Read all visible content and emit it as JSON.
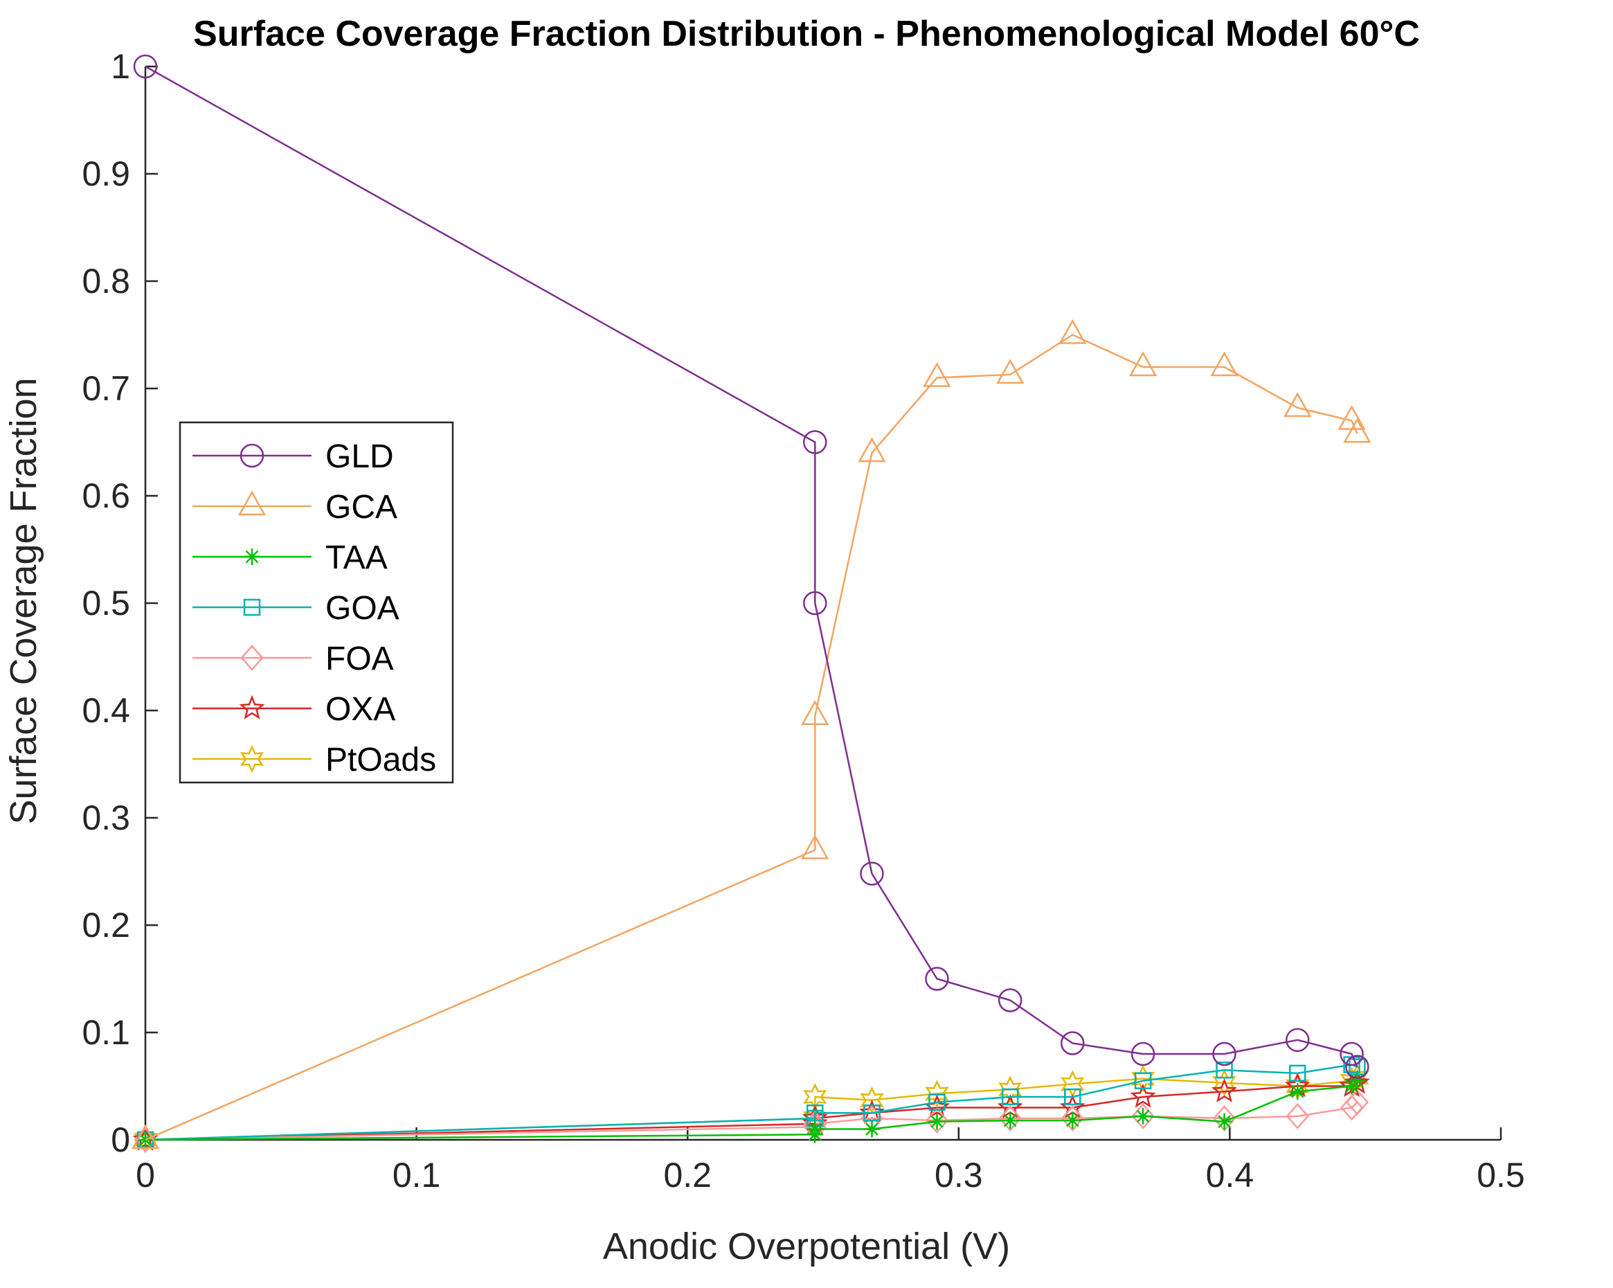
{
  "chart_data": {
    "type": "line",
    "title": "Surface Coverage Fraction Distribution - Phenomenological Model 60°C",
    "xlabel": "Anodic Overpotential (V)",
    "ylabel": "Surface Coverage Fraction",
    "xlim": [
      0,
      0.5
    ],
    "ylim": [
      0,
      1
    ],
    "xticks": [
      0,
      0.1,
      0.2,
      0.3,
      0.4,
      0.5
    ],
    "xtick_labels": [
      "0",
      "0.1",
      "0.2",
      "0.3",
      "0.4",
      "0.5"
    ],
    "yticks": [
      0,
      0.1,
      0.2,
      0.3,
      0.4,
      0.5,
      0.6,
      0.7,
      0.8,
      0.9,
      1
    ],
    "ytick_labels": [
      "0",
      "0.1",
      "0.2",
      "0.3",
      "0.4",
      "0.5",
      "0.6",
      "0.7",
      "0.8",
      "0.9",
      "1"
    ],
    "grid": false,
    "legend_position": "center-left",
    "series": [
      {
        "name": "GLD",
        "marker": "circle",
        "color": "#7e2f8e",
        "x": [
          0,
          0.247,
          0.247,
          0.268,
          0.292,
          0.319,
          0.342,
          0.368,
          0.398,
          0.425,
          0.445,
          0.447
        ],
        "y": [
          1.0,
          0.65,
          0.5,
          0.248,
          0.15,
          0.13,
          0.09,
          0.08,
          0.08,
          0.093,
          0.08,
          0.068
        ]
      },
      {
        "name": "GCA",
        "marker": "triangle",
        "color": "#f4a460",
        "x": [
          0,
          0.247,
          0.247,
          0.268,
          0.292,
          0.319,
          0.342,
          0.368,
          0.398,
          0.425,
          0.445,
          0.447
        ],
        "y": [
          0,
          0.27,
          0.395,
          0.64,
          0.71,
          0.713,
          0.75,
          0.72,
          0.72,
          0.682,
          0.67,
          0.658
        ]
      },
      {
        "name": "TAA",
        "marker": "asterisk",
        "color": "#00c000",
        "x": [
          0,
          0.247,
          0.247,
          0.268,
          0.292,
          0.319,
          0.342,
          0.368,
          0.398,
          0.425,
          0.445,
          0.447
        ],
        "y": [
          0,
          0.005,
          0.01,
          0.01,
          0.017,
          0.018,
          0.018,
          0.022,
          0.017,
          0.045,
          0.05,
          0.055
        ]
      },
      {
        "name": "GOA",
        "marker": "square",
        "color": "#00b3b3",
        "x": [
          0,
          0.247,
          0.247,
          0.268,
          0.292,
          0.319,
          0.342,
          0.368,
          0.398,
          0.425,
          0.445,
          0.447
        ],
        "y": [
          0,
          0.02,
          0.025,
          0.025,
          0.035,
          0.04,
          0.04,
          0.055,
          0.065,
          0.062,
          0.07,
          0.068
        ]
      },
      {
        "name": "FOA",
        "marker": "diamond",
        "color": "#ff9999",
        "x": [
          0,
          0.247,
          0.247,
          0.268,
          0.292,
          0.319,
          0.342,
          0.368,
          0.398,
          0.425,
          0.445,
          0.447
        ],
        "y": [
          0,
          0.012,
          0.015,
          0.02,
          0.018,
          0.02,
          0.02,
          0.022,
          0.02,
          0.022,
          0.03,
          0.035
        ]
      },
      {
        "name": "OXA",
        "marker": "star5",
        "color": "#d62728",
        "x": [
          0,
          0.247,
          0.247,
          0.268,
          0.292,
          0.319,
          0.342,
          0.368,
          0.398,
          0.425,
          0.445,
          0.447
        ],
        "y": [
          0,
          0.015,
          0.02,
          0.025,
          0.03,
          0.03,
          0.03,
          0.04,
          0.045,
          0.05,
          0.05,
          0.053
        ]
      },
      {
        "name": "PtOads",
        "marker": "star6",
        "color": "#e6b800",
        "x": [
          0,
          0.247,
          0.247,
          0.268,
          0.292,
          0.319,
          0.342,
          0.368,
          0.398,
          0.425,
          0.445,
          0.447
        ],
        "y": [
          0,
          0.02,
          0.04,
          0.037,
          0.043,
          0.047,
          0.052,
          0.057,
          0.053,
          0.05,
          0.055,
          0.058
        ]
      }
    ]
  }
}
